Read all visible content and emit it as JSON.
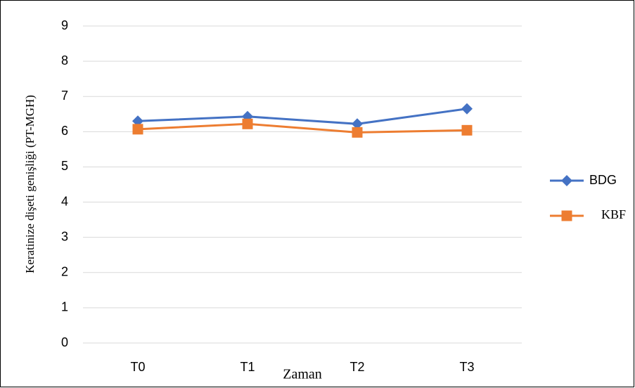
{
  "chart_data": {
    "type": "line",
    "x_label": "Zaman",
    "y_label": "Keratinize dişeti genişliği (PT-MGH)",
    "categories": [
      "T0",
      "T1",
      "T2",
      "T3"
    ],
    "series": [
      {
        "name": "BDG",
        "color": "#4472c4",
        "marker": "diamond",
        "values": [
          6.3,
          6.43,
          6.22,
          6.65
        ]
      },
      {
        "name": "KBF",
        "color": "#ed7d31",
        "marker": "square",
        "values": [
          6.07,
          6.22,
          5.98,
          6.04
        ]
      }
    ],
    "ylim": [
      0,
      9
    ],
    "yticks": [
      0,
      1,
      2,
      3,
      4,
      5,
      6,
      7,
      8,
      9
    ],
    "grid": true,
    "legend": "right"
  }
}
